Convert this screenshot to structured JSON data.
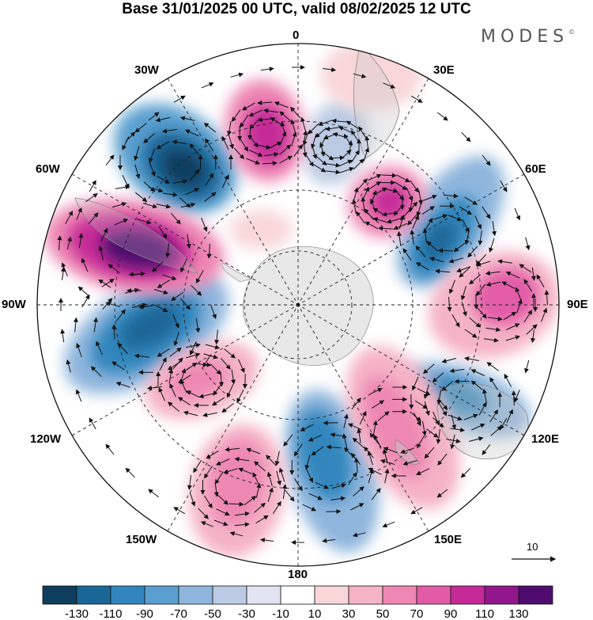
{
  "title": "Base 31/01/2025 00 UTC, valid 08/02/2025 12 UTC",
  "brand": "MODES",
  "brand_mark": "©",
  "map": {
    "projection": "south-polar-stereographic",
    "longitude_labels": {
      "top": "0",
      "top_right": "30E",
      "upper_right": "60E",
      "right": "90E",
      "lower_right": "120E",
      "bottom_right": "150E",
      "bottom": "180",
      "bottom_left": "150W",
      "lower_left": "120W",
      "left": "90W",
      "upper_left": "60W",
      "top_left": "30W"
    },
    "vector_reference": {
      "label": "10"
    }
  },
  "colorbar": {
    "colors": [
      "#0e3d5e",
      "#1a6697",
      "#3286bd",
      "#5a9fcf",
      "#8fb6dd",
      "#bccbe4",
      "#e3e4f1",
      "#ffffff",
      "#f9d7d9",
      "#f5b3c6",
      "#ee87b3",
      "#e25ba7",
      "#c52a97",
      "#92178d",
      "#4f0c6e"
    ],
    "tick_labels": [
      "-130",
      "-110",
      "-90",
      "-70",
      "-50",
      "-30",
      "-10",
      "10",
      "30",
      "50",
      "70",
      "90",
      "110",
      "130"
    ]
  },
  "anomaly_colors": {
    "negative": "#3286bd",
    "positive": "#e25ba7",
    "land": "#e8e8e8"
  }
}
